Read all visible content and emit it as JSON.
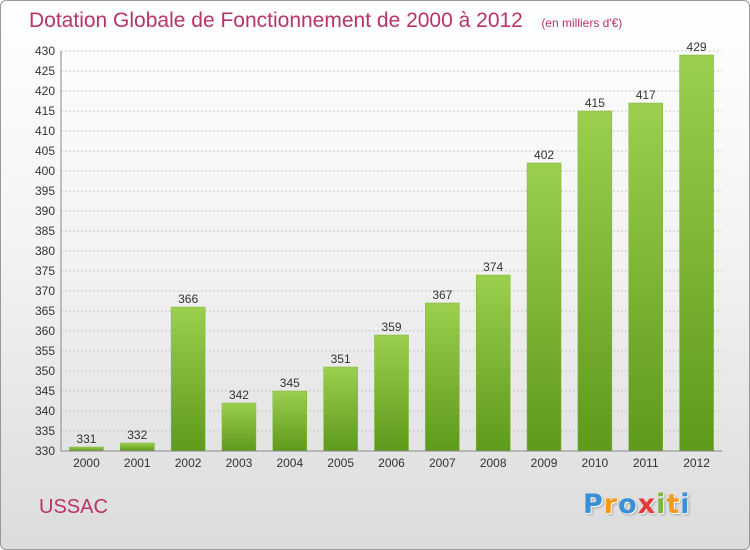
{
  "header": {
    "title": "Dotation Globale de Fonctionnement de 2000 à 2012",
    "unit": "(en milliers d'€)"
  },
  "footer": {
    "commune": "USSAC",
    "logo_text": "Proxiti",
    "logo_colors": [
      "#3a8fd6",
      "#f29a1c",
      "#3a8fd6",
      "#e23b3b",
      "#7ab83a",
      "#f29a1c",
      "#3a8fd6"
    ]
  },
  "chart_data": {
    "type": "bar",
    "title": "Dotation Globale de Fonctionnement de 2000 à 2012",
    "xlabel": "",
    "ylabel": "",
    "categories": [
      "2000",
      "2001",
      "2002",
      "2003",
      "2004",
      "2005",
      "2006",
      "2007",
      "2008",
      "2009",
      "2010",
      "2011",
      "2012"
    ],
    "values": [
      331,
      332,
      366,
      342,
      345,
      351,
      359,
      367,
      374,
      402,
      415,
      417,
      429
    ],
    "ylim": [
      330,
      430
    ],
    "ytick_step": 5,
    "grid": true,
    "colors": {
      "bar_top": "#9ccf4e",
      "bar_bottom": "#5e9a1a",
      "grid": "#c8c8c8"
    }
  }
}
